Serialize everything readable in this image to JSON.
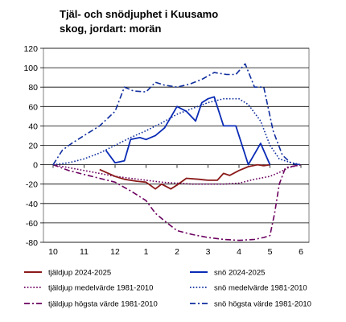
{
  "chart_data": {
    "type": "line",
    "title": [
      "Tjäl- och snödjuphet i Kuusamo",
      "skog, jordart: morän"
    ],
    "xlabel": "",
    "ylabel": "",
    "xlim": [
      9.6,
      6.6
    ],
    "ylim": [
      -80,
      120
    ],
    "y_ticks": [
      120,
      100,
      80,
      60,
      40,
      20,
      0,
      -20,
      -40,
      -60,
      -80
    ],
    "x_ticks": [
      "10",
      "11",
      "12",
      "1",
      "2",
      "3",
      "4",
      "5",
      "6"
    ],
    "grid": "horizontal",
    "legend_position": "bottom",
    "colors": {
      "frost": "#8B1A1A",
      "frost_extreme": "#6B005F",
      "snow": "#0A2BB5",
      "snow_stats": "#0F2D9E"
    },
    "series": [
      {
        "name": "tjäldjup 2024-2025",
        "color": "#8B1A1A",
        "style": "solid",
        "points": [
          [
            11.5,
            -5
          ],
          [
            12,
            -12
          ],
          [
            12.3,
            -15
          ],
          [
            12.7,
            -17
          ],
          [
            13,
            -18
          ],
          [
            13.3,
            -25
          ],
          [
            13.5,
            -20
          ],
          [
            13.8,
            -25
          ],
          [
            14,
            -21
          ],
          [
            14.3,
            -14
          ],
          [
            14.7,
            -15
          ],
          [
            15,
            -16
          ],
          [
            15.3,
            -16
          ],
          [
            15.5,
            -9
          ],
          [
            15.7,
            -11
          ],
          [
            16,
            -6
          ],
          [
            16.3,
            -2
          ],
          [
            16.6,
            0
          ],
          [
            16.8,
            -1
          ],
          [
            17,
            0
          ]
        ]
      },
      {
        "name": "snö 2024-2025",
        "color": "#0A2BB5",
        "style": "solid",
        "points": [
          [
            11.7,
            15
          ],
          [
            12,
            2
          ],
          [
            12.3,
            4
          ],
          [
            12.5,
            26
          ],
          [
            12.8,
            28
          ],
          [
            13,
            26
          ],
          [
            13.3,
            30
          ],
          [
            13.6,
            38
          ],
          [
            14,
            60
          ],
          [
            14.3,
            55
          ],
          [
            14.6,
            45
          ],
          [
            14.8,
            64
          ],
          [
            15,
            68
          ],
          [
            15.2,
            70
          ],
          [
            15.5,
            40
          ],
          [
            15.9,
            40
          ],
          [
            16.3,
            0
          ],
          [
            16.7,
            22
          ],
          [
            17,
            0
          ]
        ]
      },
      {
        "name": "tjäldjup medelvärde 1981-2010",
        "color": "#6B005F",
        "style": "dotted",
        "points": [
          [
            10,
            0
          ],
          [
            10.5,
            -3
          ],
          [
            11,
            -6
          ],
          [
            11.5,
            -9
          ],
          [
            12,
            -12
          ],
          [
            12.5,
            -14
          ],
          [
            13,
            -16
          ],
          [
            13.5,
            -18
          ],
          [
            14,
            -19
          ],
          [
            14.5,
            -20
          ],
          [
            15,
            -20
          ],
          [
            15.5,
            -20
          ],
          [
            16,
            -19
          ],
          [
            16.5,
            -15
          ],
          [
            17,
            -12
          ],
          [
            17.3,
            -8
          ],
          [
            17.6,
            -3
          ],
          [
            18,
            0
          ]
        ]
      },
      {
        "name": "snö medelvärde 1981-2010",
        "color": "#0F2D9E",
        "style": "dotted",
        "points": [
          [
            10,
            0
          ],
          [
            10.5,
            2
          ],
          [
            11,
            6
          ],
          [
            11.5,
            12
          ],
          [
            12,
            20
          ],
          [
            12.5,
            28
          ],
          [
            13,
            35
          ],
          [
            13.5,
            43
          ],
          [
            14,
            52
          ],
          [
            14.5,
            58
          ],
          [
            15,
            64
          ],
          [
            15.5,
            68
          ],
          [
            16,
            68
          ],
          [
            16.3,
            62
          ],
          [
            16.7,
            45
          ],
          [
            17,
            20
          ],
          [
            17.3,
            6
          ],
          [
            17.7,
            2
          ],
          [
            18,
            0
          ]
        ]
      },
      {
        "name": "tjäldjup högsta värde 1981-2010",
        "color": "#6B005F",
        "style": "dashdot",
        "points": [
          [
            10,
            0
          ],
          [
            10.5,
            -6
          ],
          [
            11,
            -10
          ],
          [
            11.5,
            -14
          ],
          [
            12,
            -18
          ],
          [
            12.5,
            -27
          ],
          [
            13,
            -37
          ],
          [
            13.3,
            -50
          ],
          [
            13.6,
            -58
          ],
          [
            14,
            -68
          ],
          [
            14.5,
            -72
          ],
          [
            15,
            -75
          ],
          [
            15.5,
            -77
          ],
          [
            16,
            -78
          ],
          [
            16.5,
            -77
          ],
          [
            16.8,
            -75
          ],
          [
            17,
            -73
          ],
          [
            17.15,
            -50
          ],
          [
            17.3,
            -20
          ],
          [
            17.5,
            -3
          ],
          [
            18,
            0
          ]
        ]
      },
      {
        "name": "snö högsta värde 1981-2010",
        "color": "#0F2D9E",
        "style": "dashdot",
        "points": [
          [
            10,
            0
          ],
          [
            10.3,
            15
          ],
          [
            10.6,
            22
          ],
          [
            11,
            30
          ],
          [
            11.5,
            40
          ],
          [
            12,
            55
          ],
          [
            12.3,
            80
          ],
          [
            12.6,
            76
          ],
          [
            13,
            75
          ],
          [
            13.3,
            85
          ],
          [
            13.6,
            82
          ],
          [
            14,
            80
          ],
          [
            14.4,
            83
          ],
          [
            14.8,
            88
          ],
          [
            15.2,
            95
          ],
          [
            15.6,
            93
          ],
          [
            15.9,
            93
          ],
          [
            16.2,
            104
          ],
          [
            16.5,
            80
          ],
          [
            16.8,
            80
          ],
          [
            17.1,
            35
          ],
          [
            17.4,
            10
          ],
          [
            17.7,
            1
          ],
          [
            18,
            0
          ]
        ]
      }
    ]
  }
}
